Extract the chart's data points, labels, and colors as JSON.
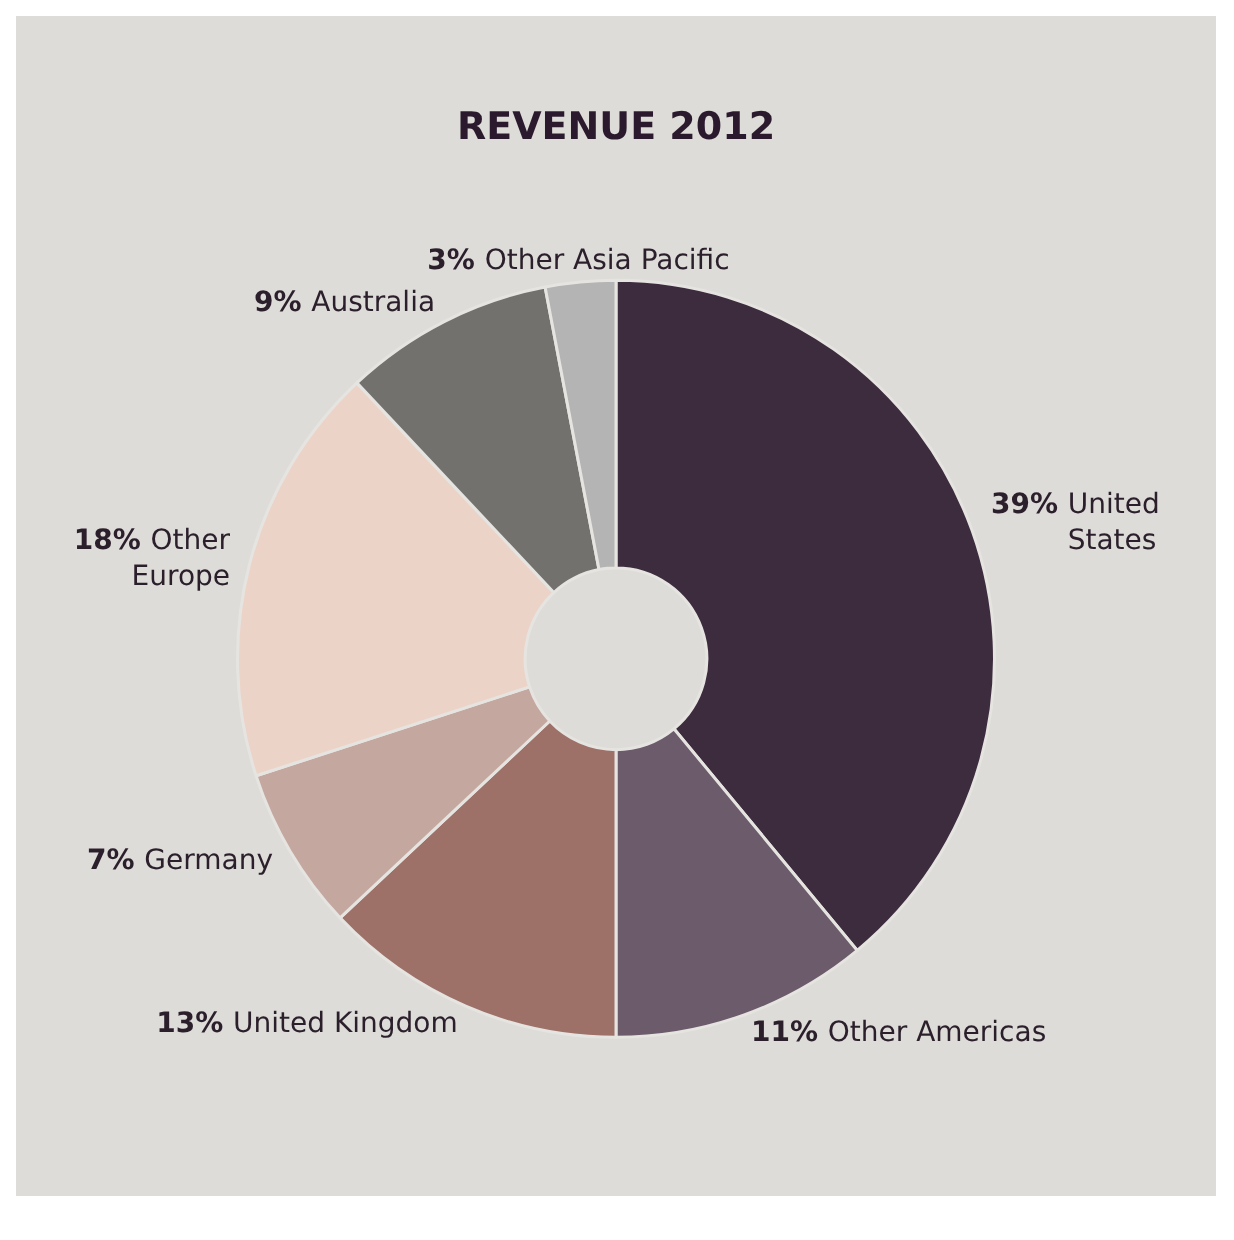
{
  "chart_data": {
    "type": "donut",
    "title": "REVENUE 2012",
    "categories": [
      "United States",
      "Other Americas",
      "United Kingdom",
      "Germany",
      "Other Europe",
      "Australia",
      "Other Asia Pacific"
    ],
    "values": [
      39,
      11,
      13,
      7,
      18,
      9,
      3
    ],
    "colors": [
      "#3d2c3e",
      "#6b5b6b",
      "#9d7068",
      "#c4a89f",
      "#ecd3c8",
      "#72716d",
      "#b4b4b4"
    ],
    "value_labels": [
      "39%",
      "11%",
      "13%",
      "7%",
      "18%",
      "9%",
      "3%"
    ],
    "legend": false
  }
}
